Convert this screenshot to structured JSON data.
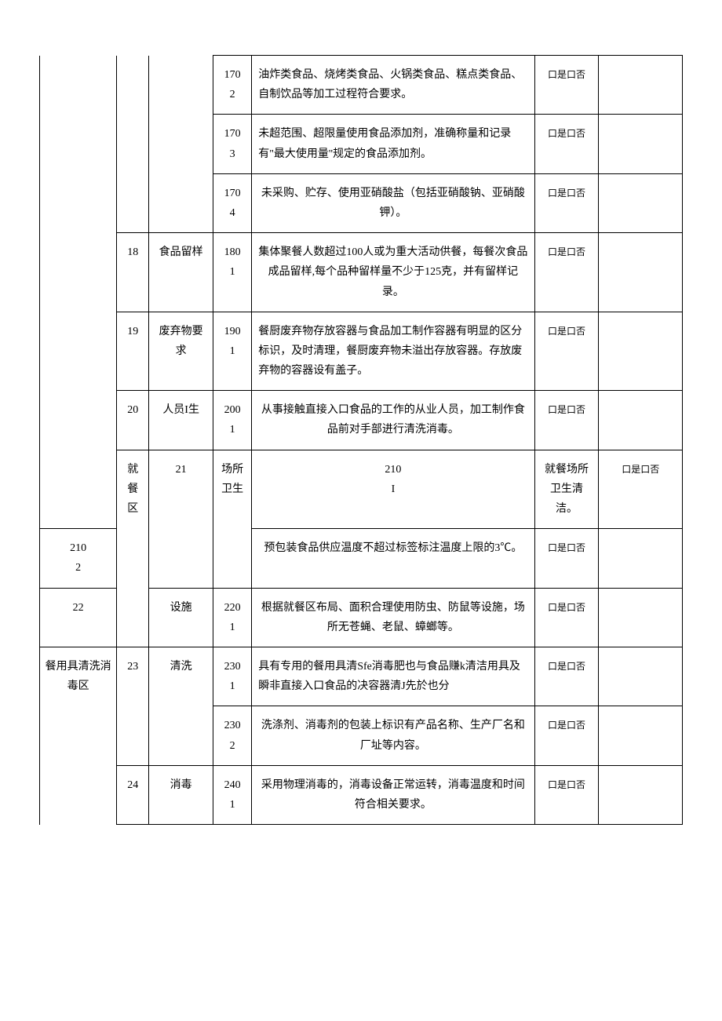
{
  "yn_text": "口是口否",
  "rows": [
    {
      "area": "",
      "area_span": 7,
      "area_open_top": true,
      "area_open_bottom": false,
      "num": "",
      "num_span": 3,
      "num_open_top": true,
      "cat": "",
      "cat_span": 3,
      "cat_open_top": true,
      "code": "170\n2",
      "desc": "油炸类食品、烧烤类食品、火锅类食品、糕点类食品、自制饮品等加工过程符合要求。",
      "desc_align": "left"
    },
    {
      "code": "170\n3",
      "desc": "未超范围、超限量使用食品添加剂，准确称量和记录有\"最大使用量''规定的食品添加剂。",
      "desc_align": "left"
    },
    {
      "code": "170\n4",
      "desc": "未采购、贮存、使用亚硝酸盐（包括亚硝酸钠、亚硝酸钾）。",
      "desc_align": "center"
    },
    {
      "num": "18",
      "num_span": 1,
      "cat": "食品留样",
      "cat_span": 1,
      "code": "180\n1",
      "desc": "集体聚餐人数超过100人或为重大活动供餐，每餐次食品成品留样,每个品种留样量不少于125克，并有留样记录。",
      "desc_align": "center"
    },
    {
      "num": "19",
      "num_span": 1,
      "cat": "废弃物要求",
      "cat_span": 1,
      "code": "190\n1",
      "desc": "餐厨废弃物存放容器与食品加工制作容器有明显的区分标识，及时清理，餐厨废弃物未溢出存放容器。存放废弃物的容器设有盖子。",
      "desc_align": "left"
    },
    {
      "num": "20",
      "num_span": 1,
      "cat": "人员I生",
      "cat_span": 1,
      "code": "200\n1",
      "desc": "从事接触直接入口食品的工作的从业人员，加工制作食品前对手部进行清洗消毒。",
      "desc_align": "center"
    },
    {
      "area": "就餐区",
      "area_span": 3,
      "num": "21",
      "num_span": 2,
      "cat": "场所卫生",
      "cat_span": 2,
      "code": "210\nI",
      "desc": "就餐场所卫生清洁。",
      "desc_align": "center"
    },
    {
      "code": "210\n2",
      "desc": "预包装食品供应温度不超过标签标注温度上限的3℃。",
      "desc_align": "center"
    },
    {
      "num": "22",
      "num_span": 1,
      "cat": "设施",
      "cat_span": 1,
      "code": "220\n1",
      "desc": "根据就餐区布局、面积合理使用防虫、防鼠等设施，场所无苍蝇、老鼠、蟑螂等。",
      "desc_align": "center"
    },
    {
      "area": "餐用具清洗消毒区",
      "area_span": 3,
      "area_open_bottom": true,
      "num": "23",
      "num_span": 2,
      "cat": "清洗",
      "cat_span": 2,
      "code": "230\n1",
      "desc": "具有专用的餐用具清Sfe消毒肥也与食品赚k清洁用具及瞬非直接入口食品的决容器清J先於也分",
      "desc_align": "left"
    },
    {
      "code": "230\n2",
      "desc": "洗涤剂、消毒剂的包装上标识有产品名称、生产厂名和厂址等内容。",
      "desc_align": "center"
    },
    {
      "num": "24",
      "num_span": 1,
      "cat": "消毒",
      "cat_span": 1,
      "code": "240\n1",
      "desc": "采用物理消毒的，消毒设备正常运转，消毒温度和时间符合相关要求。",
      "desc_align": "center"
    }
  ]
}
